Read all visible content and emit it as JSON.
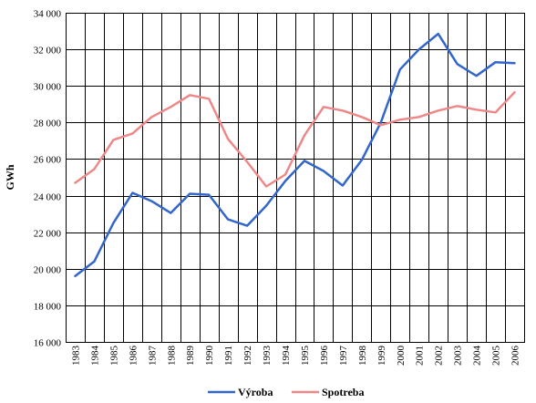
{
  "chart_data": {
    "type": "line",
    "title": "",
    "xlabel": "",
    "ylabel": "GWh",
    "ylim": [
      16000,
      34000
    ],
    "ystep": 2000,
    "grid": true,
    "legend_position": "bottom",
    "x": [
      "1983",
      "1984",
      "1985",
      "1986",
      "1987",
      "1988",
      "1989",
      "1990",
      "1991",
      "1992",
      "1993",
      "1994",
      "1995",
      "1996",
      "1997",
      "1998",
      "1999",
      "2000",
      "2001",
      "2002",
      "2003",
      "2004",
      "2005",
      "2006"
    ],
    "y_tick_labels": [
      "16 000",
      "18 000",
      "20 000",
      "22 000",
      "24 000",
      "26 000",
      "28 000",
      "30 000",
      "32 000",
      "34 000"
    ],
    "series": [
      {
        "name": "Výroba",
        "color": "#3366cc",
        "values": [
          19600,
          20400,
          22500,
          24150,
          23700,
          23050,
          24100,
          24050,
          22700,
          22350,
          23450,
          24800,
          25900,
          25350,
          24550,
          25950,
          28000,
          30900,
          32000,
          32850,
          31200,
          30550,
          31300,
          31250
        ]
      },
      {
        "name": "Spotreba",
        "color": "#ee8888",
        "values": [
          24700,
          25450,
          27050,
          27400,
          28300,
          28850,
          29500,
          29300,
          27100,
          25850,
          24500,
          25150,
          27300,
          28850,
          28650,
          28300,
          27850,
          28150,
          28300,
          28650,
          28900,
          28700,
          28550,
          29650
        ]
      }
    ]
  }
}
